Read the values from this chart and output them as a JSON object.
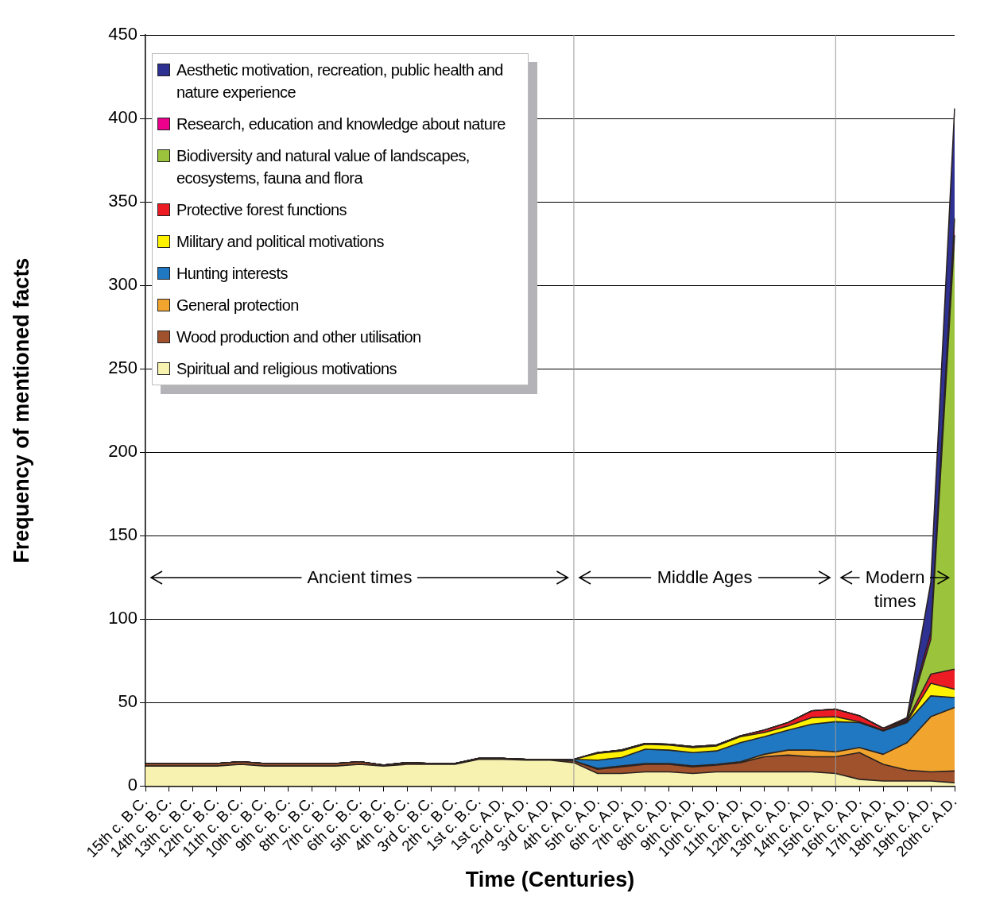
{
  "chart_data": {
    "type": "area",
    "stacked": true,
    "xlabel": "Time (Centuries)",
    "ylabel": "Frequency of mentioned facts",
    "categories": [
      "15th c. B.C.",
      "14th c. B.C.",
      "13th c. B.C.",
      "12th c. B.C.",
      "11th c. B.C.",
      "10th c. B.C.",
      "9th c. B.C.",
      "8th c. B.C.",
      "7th c. B.C.",
      "6th c. B.C.",
      "5th c. B.C.",
      "4th c. B.C.",
      "3rd c. B.C.",
      "2th c. B.C.",
      "1st c. B.C.",
      "1st c. A.D.",
      "2nd c. A.D.",
      "3rd c. A.D.",
      "4th c. A.D.",
      "5th c. A.D.",
      "6th c. A.D.",
      "7th c. A.D.",
      "8th c. A.D.",
      "9th c. A.D.",
      "10th c. A.D.",
      "11th c. A.D.",
      "12th c. A.D.",
      "13th c. A.D.",
      "14th c. A.D.",
      "15th c. A.D.",
      "16th c. A.D.",
      "17th c. A.D.",
      "18th c. A.D.",
      "19th c. A.D.",
      "20th c. A.D."
    ],
    "series": [
      {
        "name": "Spiritual and religious motivations",
        "color": "#f7f2b0",
        "values": [
          12,
          12,
          12,
          12,
          13,
          12,
          12,
          12,
          12,
          13,
          12,
          13,
          13,
          13,
          16,
          16,
          15.5,
          15.5,
          14,
          7.5,
          7.5,
          8.5,
          8.5,
          7.5,
          8.5,
          8.5,
          8.5,
          8.5,
          8.5,
          7.5,
          4,
          3,
          3,
          3,
          2
        ]
      },
      {
        "name": "Wood production and other utilisation",
        "color": "#a0522d",
        "values": [
          1.5,
          1.5,
          1.5,
          1.5,
          1.5,
          1.5,
          1.5,
          1.5,
          1.5,
          1.5,
          0.5,
          1,
          0.5,
          0.5,
          0.5,
          0.5,
          0.5,
          0.5,
          1,
          2.5,
          4,
          4.5,
          4.5,
          4,
          4,
          5.5,
          9,
          10,
          9,
          10,
          16,
          10,
          6.5,
          5.5,
          7
        ]
      },
      {
        "name": "General protection",
        "color": "#f2a52e",
        "values": [
          0,
          0,
          0,
          0,
          0,
          0,
          0,
          0,
          0,
          0,
          0,
          0,
          0,
          0,
          0,
          0,
          0,
          0,
          0,
          0.5,
          0.5,
          0.5,
          0.5,
          0.5,
          0.5,
          0.5,
          1.5,
          3,
          4,
          3,
          3,
          6,
          16.5,
          33,
          38
        ]
      },
      {
        "name": "Hunting interests",
        "color": "#1f78c1",
        "values": [
          0,
          0,
          0,
          0,
          0,
          0,
          0,
          0,
          0,
          0,
          0,
          0,
          0,
          0,
          0,
          0,
          0,
          0,
          1,
          5,
          5,
          8.5,
          8,
          8,
          8,
          11.5,
          10.5,
          12,
          15.5,
          18,
          15,
          14,
          12,
          12.5,
          6
        ]
      },
      {
        "name": "Military and political motivations",
        "color": "#fff200",
        "values": [
          0,
          0,
          0,
          0,
          0,
          0,
          0,
          0,
          0,
          0,
          0,
          0,
          0,
          0,
          0,
          0,
          0,
          0,
          0,
          4,
          4,
          3,
          3,
          3,
          3,
          3.5,
          2.5,
          2.5,
          4,
          3,
          0.5,
          0.5,
          0.5,
          7.5,
          5
        ]
      },
      {
        "name": "Protective forest functions",
        "color": "#ed1c24",
        "values": [
          0,
          0,
          0,
          0,
          0,
          0,
          0,
          0,
          0,
          0,
          0,
          0,
          0,
          0,
          0,
          0,
          0,
          0,
          0,
          0.5,
          0.5,
          0.5,
          0.5,
          0.5,
          0.5,
          0.5,
          1.5,
          2,
          4,
          4.5,
          3.5,
          1,
          0.5,
          5.5,
          12
        ]
      },
      {
        "name": "Biodiversity and natural value of landscapes, ecosystems, fauna and flora",
        "color": "#9bc43c",
        "values": [
          0,
          0,
          0,
          0,
          0,
          0,
          0,
          0,
          0,
          0,
          0,
          0,
          0,
          0,
          0,
          0,
          0,
          0,
          0,
          0,
          0,
          0,
          0,
          0,
          0,
          0,
          0,
          0,
          0,
          0,
          0,
          0,
          0.5,
          21,
          260
        ]
      },
      {
        "name": "Research, education and knowledge about nature",
        "color": "#ec008c",
        "values": [
          0,
          0,
          0,
          0,
          0,
          0,
          0,
          0,
          0,
          0,
          0,
          0,
          0,
          0,
          0,
          0,
          0,
          0,
          0,
          0,
          0,
          0,
          0,
          0,
          0,
          0,
          0,
          0,
          0,
          0,
          0,
          0,
          1,
          4,
          10
        ]
      },
      {
        "name": "Aesthetic motivation, recreation, public health and nature experience",
        "color": "#2e3192",
        "values": [
          0,
          0,
          0,
          0,
          0,
          0,
          0,
          0,
          0,
          0,
          0,
          0,
          0,
          0,
          0,
          0,
          0,
          0,
          0,
          0,
          0,
          0,
          0,
          0,
          0,
          0,
          0,
          0,
          0,
          0,
          0,
          0,
          0.5,
          30,
          66
        ]
      }
    ],
    "ylim": [
      0,
      450
    ],
    "yticks": [
      0,
      50,
      100,
      150,
      200,
      250,
      300,
      350,
      400,
      450
    ],
    "grid": "y",
    "legend": "top left",
    "ref_lines": [
      {
        "axis": "x",
        "value": "4th c. A.D.",
        "color": "#999999"
      },
      {
        "axis": "x",
        "value": "15th c. A.D.",
        "color": "#999999"
      }
    ],
    "annotations": [
      "Ancient times",
      "Middle Ages",
      "Modern times"
    ]
  }
}
